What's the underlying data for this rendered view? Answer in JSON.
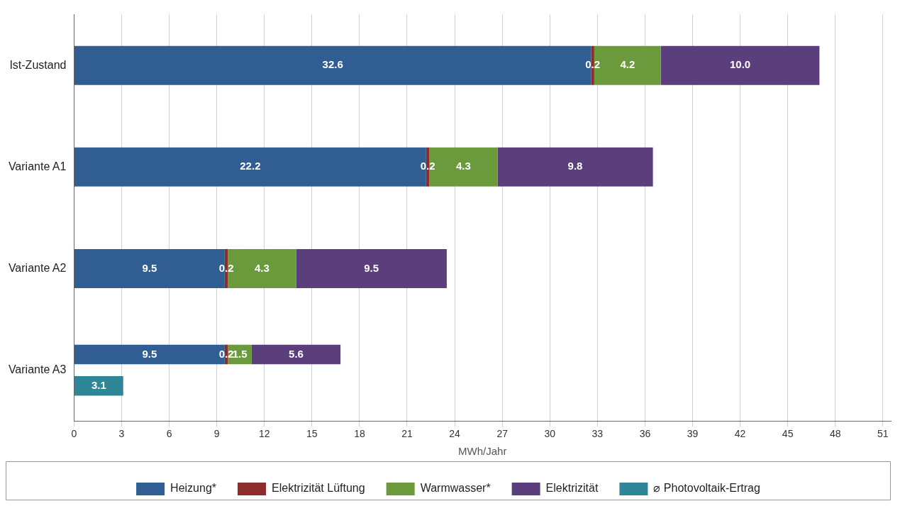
{
  "chart_data": {
    "type": "bar",
    "orientation": "horizontal",
    "xlabel": "MWh/Jahr",
    "categories": [
      "Ist-Zustand",
      "Variante A1",
      "Variante A2",
      "Variante A3"
    ],
    "series": [
      {
        "name": "Heizung*",
        "color": "#305d92",
        "values": [
          32.6,
          22.2,
          9.5,
          9.5
        ],
        "base": [
          0,
          0,
          0,
          0
        ],
        "value_labels": [
          "32.6",
          "22.2",
          "9.5",
          "9.5"
        ]
      },
      {
        "name": "Elektrizität Lüftung",
        "color": "#8e2b2b",
        "values": [
          0.2,
          0.2,
          0.2,
          0.2
        ],
        "base": [
          32.6,
          22.2,
          9.5,
          9.5
        ],
        "value_labels": [
          "0.2",
          "0.2",
          "0.2",
          "0.2"
        ]
      },
      {
        "name": "Warmwasser*",
        "color": "#6b9a3c",
        "values": [
          4.2,
          4.3,
          4.3,
          1.5
        ],
        "base": [
          32.8,
          22.4,
          9.7,
          9.7
        ],
        "value_labels": [
          "4.2",
          "4.3",
          "4.3",
          "1.5"
        ]
      },
      {
        "name": "Elektrizität",
        "color": "#5a3f7c",
        "values": [
          10.0,
          9.8,
          9.5,
          5.6
        ],
        "base": [
          37.0,
          26.7,
          14.0,
          11.2
        ],
        "value_labels": [
          "10.0",
          "9.8",
          "9.5",
          "5.6"
        ]
      },
      {
        "name": "⌀ Photovoltaik-Ertrag",
        "color": "#2e8696",
        "values": [
          null,
          null,
          null,
          3.1
        ],
        "base": [
          null,
          null,
          null,
          0
        ],
        "value_labels": [
          null,
          null,
          null,
          "3.1"
        ]
      }
    ],
    "xlim": [
      0,
      51.5
    ],
    "xticks": [
      0,
      3,
      6,
      9,
      12,
      15,
      18,
      21,
      24,
      27,
      30,
      33,
      36,
      39,
      42,
      45,
      48,
      51
    ],
    "grid": "x",
    "legend": "bottom"
  }
}
